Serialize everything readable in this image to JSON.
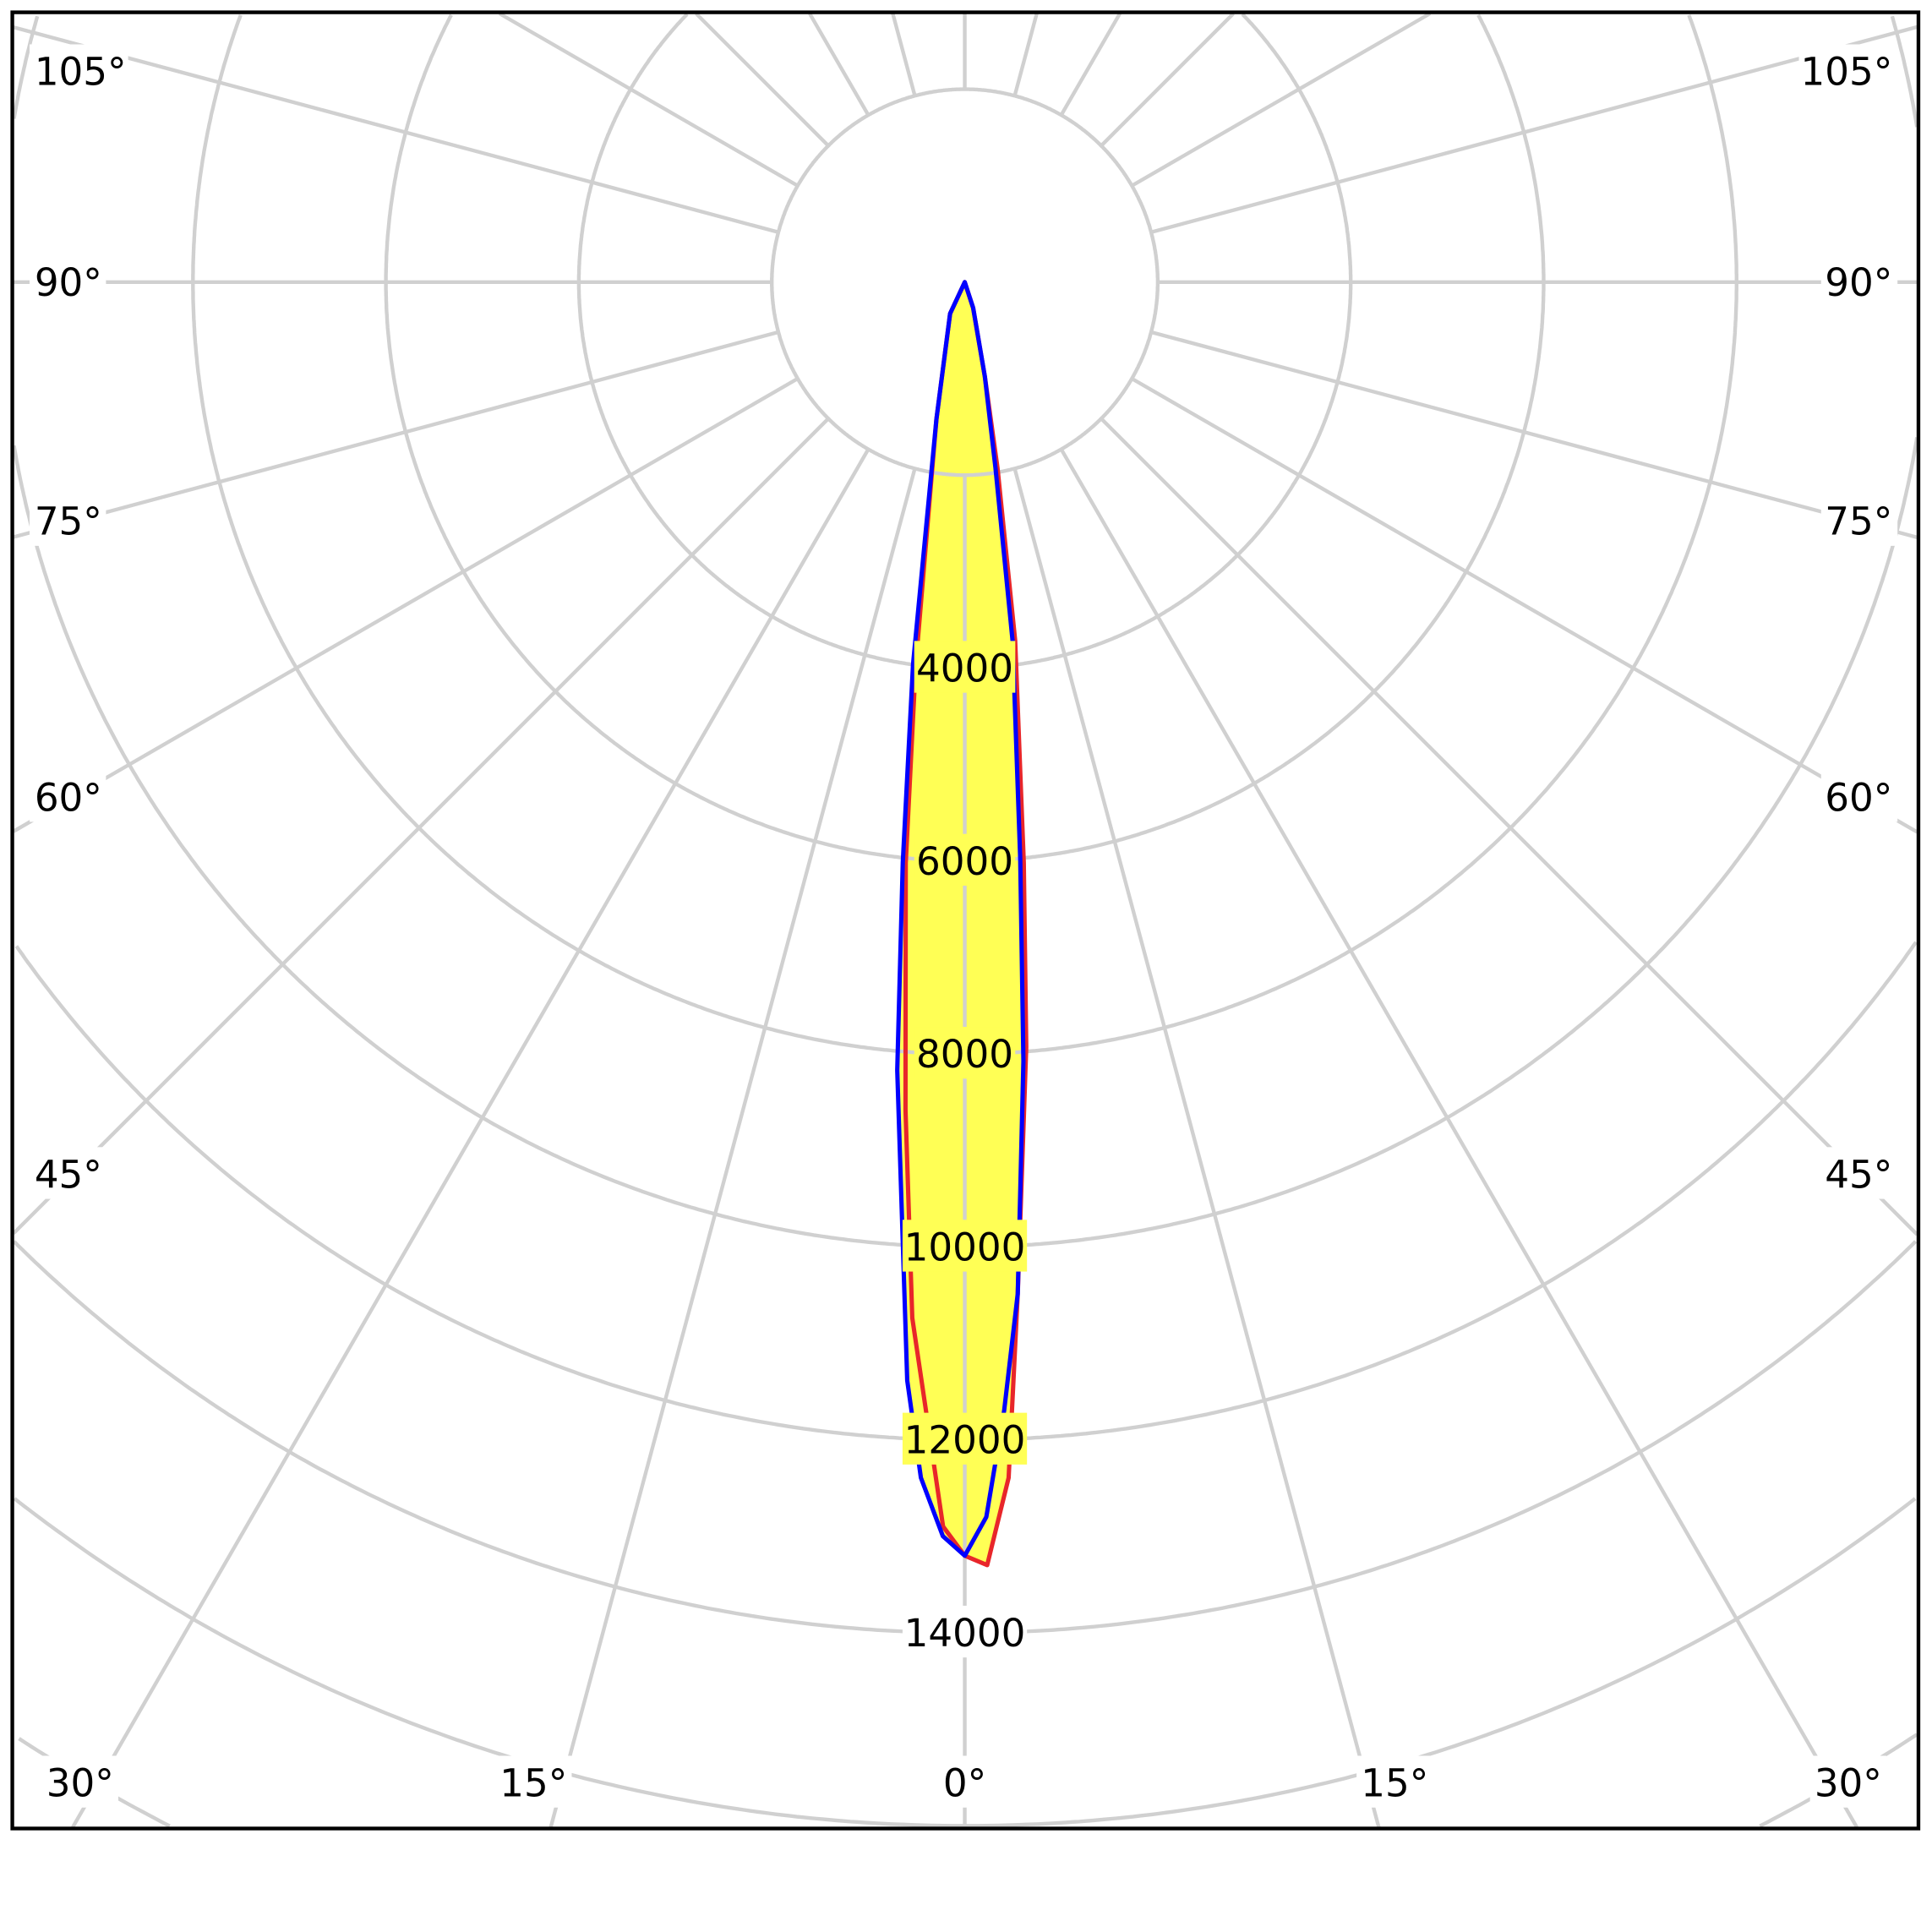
{
  "chart_data": {
    "type": "polar",
    "title": "",
    "radial_unit": "",
    "radial_ticks": [
      4000,
      6000,
      8000,
      10000,
      12000,
      14000
    ],
    "radial_tick_labels": [
      "4000",
      "6000",
      "8000",
      "10000",
      "12000",
      "14000"
    ],
    "grid_ring_step": 2000,
    "grid_spoke_step_deg": 15,
    "angle_labels": {
      "left": [
        "105°",
        "90°",
        "75°",
        "60°",
        "45°"
      ],
      "right": [
        "105°",
        "90°",
        "75°",
        "60°",
        "45°"
      ],
      "bottom": [
        "30°",
        "15°",
        "0°",
        "15°",
        "30°"
      ]
    },
    "fill_color": "#ffff55",
    "grid": true,
    "series": [
      {
        "color": "#e8262a",
        "right": [
          [
            0,
            13200
          ],
          [
            1,
            13300
          ],
          [
            2.1,
            12400
          ],
          [
            3,
            10500
          ],
          [
            4.6,
            7950
          ],
          [
            5.8,
            6050
          ],
          [
            8,
            3750
          ],
          [
            10,
            1960
          ],
          [
            12,
            1000
          ],
          [
            18,
            280
          ],
          [
            30,
            0
          ]
        ],
        "left": [
          [
            0,
            13200
          ],
          [
            1,
            12900
          ],
          [
            2.9,
            10750
          ],
          [
            4.1,
            8600
          ],
          [
            5.8,
            6050
          ],
          [
            7.3,
            4000
          ],
          [
            11.7,
            1450
          ],
          [
            25,
            360
          ],
          [
            40,
            0
          ]
        ]
      },
      {
        "color": "#0000ff",
        "right": [
          [
            0,
            13200
          ],
          [
            1,
            12800
          ],
          [
            2,
            11700
          ],
          [
            3,
            10500
          ],
          [
            4.3,
            8100
          ],
          [
            5.5,
            6000
          ],
          [
            7.6,
            3750
          ],
          [
            9.4,
            1950
          ],
          [
            12,
            1000
          ],
          [
            18,
            280
          ],
          [
            30,
            0
          ]
        ],
        "left": [
          [
            0,
            13200
          ],
          [
            1,
            13000
          ],
          [
            2.1,
            12400
          ],
          [
            3,
            11400
          ],
          [
            4.9,
            8200
          ],
          [
            6.1,
            6050
          ],
          [
            7.7,
            4000
          ],
          [
            11.7,
            1450
          ],
          [
            25,
            360
          ],
          [
            40,
            0
          ]
        ]
      }
    ]
  }
}
